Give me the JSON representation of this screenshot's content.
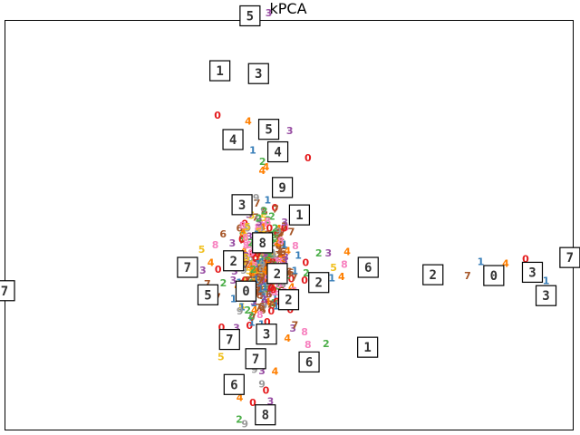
{
  "chart_data": {
    "type": "scatter",
    "title": "kPCA",
    "xlabel": "",
    "ylabel": "",
    "xlim": [
      0,
      100
    ],
    "ylim": [
      0,
      100
    ],
    "grid": false,
    "axis_ticks": false,
    "label_colors": {
      "0": "#e41a1c",
      "1": "#377eb8",
      "2": "#4daf4a",
      "3": "#984ea3",
      "4": "#ff7f00",
      "5": "#f0c020",
      "6": "#a65628",
      "7": "#a65628",
      "8": "#f781bf",
      "9": "#999999"
    },
    "labeled_points": [
      {
        "label": "3",
        "x": 46.5,
        "y": 101.5
      },
      {
        "label": "0",
        "x": 37.5,
        "y": 76.5
      },
      {
        "label": "4",
        "x": 42.9,
        "y": 75.1
      },
      {
        "label": "3",
        "x": 50.2,
        "y": 72.8
      },
      {
        "label": "1",
        "x": 43.7,
        "y": 68.0
      },
      {
        "label": "0",
        "x": 53.4,
        "y": 66.2
      },
      {
        "label": "2",
        "x": 45.4,
        "y": 65.3
      },
      {
        "label": "4",
        "x": 46.0,
        "y": 63.9
      },
      {
        "label": "9",
        "x": 44.3,
        "y": 56.4
      },
      {
        "label": "1",
        "x": 46.3,
        "y": 55.9
      },
      {
        "label": "7",
        "x": 47.7,
        "y": 53.6
      },
      {
        "label": "2",
        "x": 45.7,
        "y": 53.2
      },
      {
        "label": "3",
        "x": 49.3,
        "y": 50.4
      },
      {
        "label": "8",
        "x": 41.9,
        "y": 49.7
      },
      {
        "label": "7",
        "x": 50.5,
        "y": 48.1
      },
      {
        "label": "8",
        "x": 37.1,
        "y": 44.9
      },
      {
        "label": "3",
        "x": 40.1,
        "y": 45.4
      },
      {
        "label": "5",
        "x": 34.7,
        "y": 43.8
      },
      {
        "label": "3",
        "x": 57.0,
        "y": 42.9
      },
      {
        "label": "2",
        "x": 55.3,
        "y": 42.9
      },
      {
        "label": "4",
        "x": 60.3,
        "y": 43.3
      },
      {
        "label": "4",
        "x": 36.3,
        "y": 40.6
      },
      {
        "label": "0",
        "x": 37.6,
        "y": 38.9
      },
      {
        "label": "3",
        "x": 34.9,
        "y": 38.7
      },
      {
        "label": "5",
        "x": 57.9,
        "y": 39.4
      },
      {
        "label": "8",
        "x": 59.8,
        "y": 40.2
      },
      {
        "label": "1",
        "x": 57.6,
        "y": 36.8
      },
      {
        "label": "4",
        "x": 59.3,
        "y": 37.2
      },
      {
        "label": "0",
        "x": 53.0,
        "y": 40.6
      },
      {
        "label": "2",
        "x": 53.1,
        "y": 38.1
      },
      {
        "label": "0",
        "x": 52.8,
        "y": 36.3
      },
      {
        "label": "7",
        "x": 35.7,
        "y": 35.4
      },
      {
        "label": "2",
        "x": 38.5,
        "y": 35.6
      },
      {
        "label": "7",
        "x": 37.5,
        "y": 32.2
      },
      {
        "label": "1",
        "x": 40.3,
        "y": 31.8
      },
      {
        "label": "6",
        "x": 45.2,
        "y": 29.9
      },
      {
        "label": "0",
        "x": 38.2,
        "y": 24.8
      },
      {
        "label": "1",
        "x": 83.8,
        "y": 40.8
      },
      {
        "label": "4",
        "x": 88.2,
        "y": 40.4
      },
      {
        "label": "0",
        "x": 91.7,
        "y": 41.5
      },
      {
        "label": "7",
        "x": 81.5,
        "y": 37.4
      },
      {
        "label": "1",
        "x": 95.3,
        "y": 36.2
      },
      {
        "label": "8",
        "x": 52.8,
        "y": 23.7
      },
      {
        "label": "8",
        "x": 53.4,
        "y": 20.6
      },
      {
        "label": "2",
        "x": 56.6,
        "y": 20.8
      },
      {
        "label": "7",
        "x": 51.1,
        "y": 25.3
      },
      {
        "label": "4",
        "x": 49.8,
        "y": 22.1
      },
      {
        "label": "5",
        "x": 38.1,
        "y": 17.6
      },
      {
        "label": "9",
        "x": 44.0,
        "y": 14.5
      },
      {
        "label": "4",
        "x": 47.6,
        "y": 14.0
      },
      {
        "label": "3",
        "x": 45.3,
        "y": 14.2
      },
      {
        "label": "9",
        "x": 45.3,
        "y": 11.0
      },
      {
        "label": "0",
        "x": 46.0,
        "y": 9.4
      },
      {
        "label": "4",
        "x": 41.4,
        "y": 7.6
      },
      {
        "label": "0",
        "x": 43.7,
        "y": 6.4
      },
      {
        "label": "3",
        "x": 46.8,
        "y": 6.7
      },
      {
        "label": "2",
        "x": 41.3,
        "y": 2.3
      },
      {
        "label": "9",
        "x": 42.3,
        "y": 1.2
      }
    ],
    "dense_cluster": {
      "center": [
        45.8,
        40.0
      ],
      "spread": [
        4.0,
        11.0
      ],
      "count": 380
    },
    "thumbnails": [
      {
        "digit": "5",
        "x": 43.2,
        "y": 101.0
      },
      {
        "digit": "1",
        "x": 37.9,
        "y": 87.6
      },
      {
        "digit": "3",
        "x": 44.7,
        "y": 86.9
      },
      {
        "digit": "5",
        "x": 46.5,
        "y": 73.3
      },
      {
        "digit": "4",
        "x": 40.2,
        "y": 70.8
      },
      {
        "digit": "4",
        "x": 48.1,
        "y": 67.8
      },
      {
        "digit": "9",
        "x": 48.9,
        "y": 59.1
      },
      {
        "digit": "3",
        "x": 41.8,
        "y": 54.9
      },
      {
        "digit": "1",
        "x": 51.9,
        "y": 52.4
      },
      {
        "digit": "8",
        "x": 45.4,
        "y": 45.6
      },
      {
        "digit": "2",
        "x": 40.3,
        "y": 41.2
      },
      {
        "digit": "7",
        "x": 32.2,
        "y": 39.6
      },
      {
        "digit": "6",
        "x": 64.0,
        "y": 39.6
      },
      {
        "digit": "2",
        "x": 48.0,
        "y": 38.1
      },
      {
        "digit": "2",
        "x": 55.3,
        "y": 35.9
      },
      {
        "digit": "0",
        "x": 42.5,
        "y": 33.8
      },
      {
        "digit": "5",
        "x": 35.8,
        "y": 32.9
      },
      {
        "digit": "2",
        "x": 50.0,
        "y": 31.7
      },
      {
        "digit": "3",
        "x": 46.1,
        "y": 23.3
      },
      {
        "digit": "7",
        "x": 39.6,
        "y": 22.0
      },
      {
        "digit": "1",
        "x": 63.9,
        "y": 20.1
      },
      {
        "digit": "7",
        "x": 44.2,
        "y": 17.3
      },
      {
        "digit": "6",
        "x": 53.6,
        "y": 16.5
      },
      {
        "digit": "6",
        "x": 40.4,
        "y": 11.0
      },
      {
        "digit": "8",
        "x": 45.9,
        "y": 3.6
      },
      {
        "digit": "2",
        "x": 75.4,
        "y": 37.8
      },
      {
        "digit": "0",
        "x": 86.1,
        "y": 37.6
      },
      {
        "digit": "3",
        "x": 92.9,
        "y": 38.4
      },
      {
        "digit": "3",
        "x": 95.3,
        "y": 32.7
      },
      {
        "digit": "7",
        "x": 99.5,
        "y": 42.0
      },
      {
        "digit": "7",
        "x": 0.0,
        "y": 33.9
      }
    ]
  }
}
